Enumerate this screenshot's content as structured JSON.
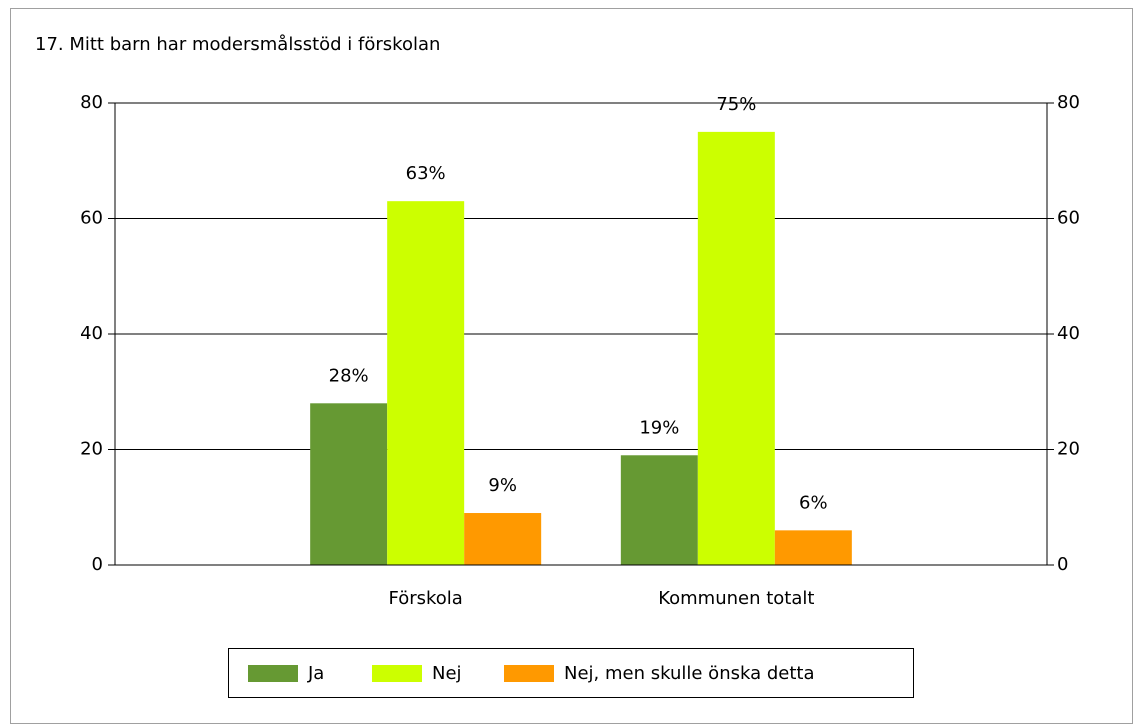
{
  "chart_data": {
    "type": "bar",
    "title": "17. Mitt barn har modersmålsstöd i förskolan",
    "categories": [
      "Förskola",
      "Kommunen totalt"
    ],
    "series": [
      {
        "name": "Ja",
        "color": "#669933",
        "values": [
          28,
          19
        ],
        "value_labels": [
          "28%",
          "19%"
        ]
      },
      {
        "name": "Nej",
        "color": "#ccff00",
        "values": [
          63,
          75
        ],
        "value_labels": [
          "63%",
          "75%"
        ]
      },
      {
        "name": "Nej, men skulle önska detta",
        "color": "#ff9900",
        "values": [
          9,
          6
        ],
        "value_labels": [
          "9%",
          "6%"
        ]
      }
    ],
    "ylim": [
      0,
      80
    ],
    "yticks": [
      0,
      20,
      40,
      60,
      80
    ],
    "y2lim": [
      0,
      80
    ],
    "y2ticks": [
      0,
      20,
      40,
      60,
      80
    ],
    "grid": true,
    "legend": "bottom"
  }
}
